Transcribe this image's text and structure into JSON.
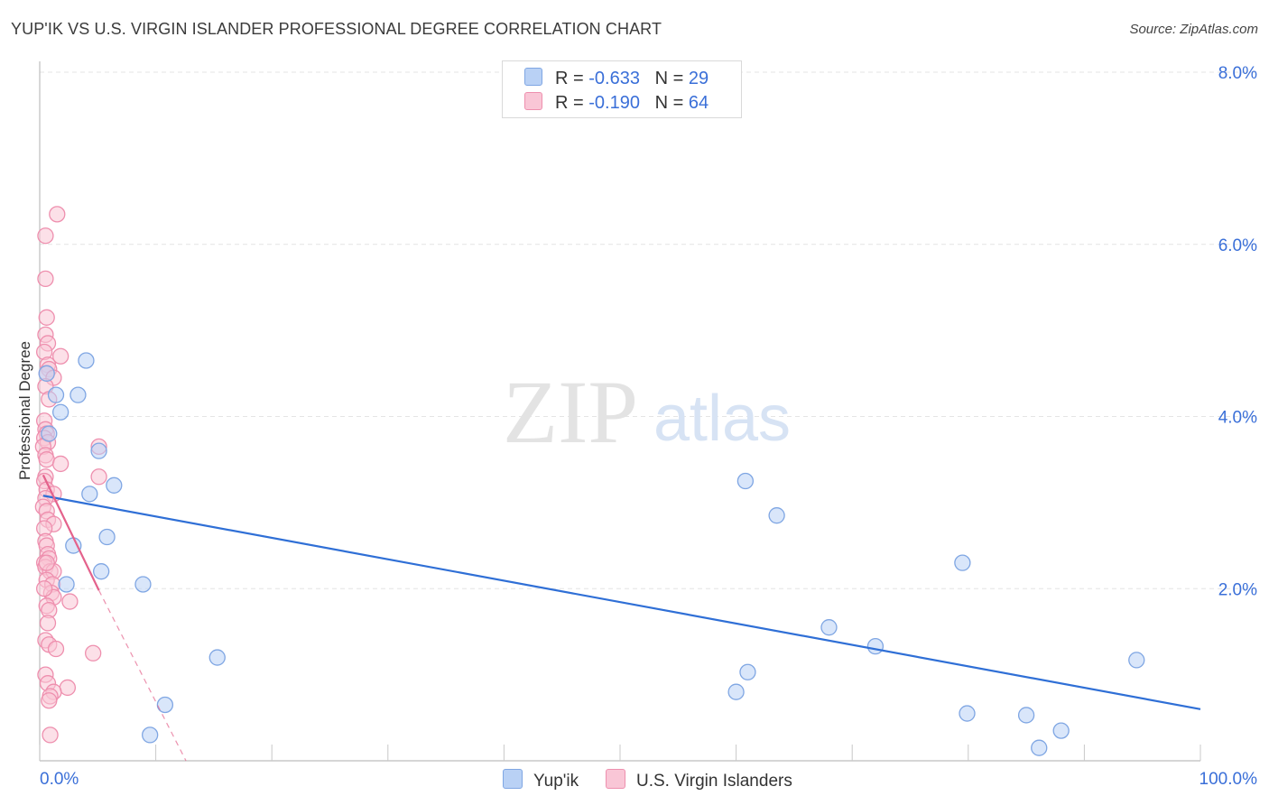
{
  "title": "YUP'IK VS U.S. VIRGIN ISLANDER PROFESSIONAL DEGREE CORRELATION CHART",
  "source": "Source: ZipAtlas.com",
  "watermark": {
    "zip": "ZIP",
    "atlas": "atlas"
  },
  "colors": {
    "blue_fill": "#b9d1f5",
    "blue_stroke": "#7fa6e3",
    "blue_line": "#2f6fd6",
    "pink_fill": "#f9c6d6",
    "pink_stroke": "#ee8fae",
    "pink_line": "#e4628c",
    "tick_label": "#3a6fd8",
    "grid": "#e4e4e4"
  },
  "legend": {
    "rows": [
      {
        "r_label": "R = ",
        "r_value": "-0.633",
        "n_label": "N = ",
        "n_value": "29",
        "series": "Yup'ik"
      },
      {
        "r_label": "R = ",
        "r_value": "-0.190",
        "n_label": "N = ",
        "n_value": "64",
        "series": "U.S. Virgin Islanders"
      }
    ]
  },
  "chart_data": {
    "type": "scatter",
    "title": "YUP'IK VS U.S. VIRGIN ISLANDER PROFESSIONAL DEGREE CORRELATION CHART",
    "xlabel": "",
    "ylabel": "Professional Degree",
    "xlim": [
      0,
      100
    ],
    "ylim": [
      0,
      8.0
    ],
    "x_tick_labels": [
      "0.0%",
      "100.0%"
    ],
    "y_ticks": [
      2.0,
      4.0,
      6.0,
      8.0
    ],
    "y_tick_labels": [
      "2.0%",
      "4.0%",
      "6.0%",
      "8.0%"
    ],
    "grid": true,
    "series": [
      {
        "name": "Yup'ik",
        "color": "#b9d1f5",
        "points": [
          [
            0.6,
            4.5
          ],
          [
            0.8,
            3.8
          ],
          [
            1.4,
            4.25
          ],
          [
            1.8,
            4.05
          ],
          [
            4.0,
            4.65
          ],
          [
            3.3,
            4.25
          ],
          [
            5.1,
            3.6
          ],
          [
            4.3,
            3.1
          ],
          [
            6.4,
            3.2
          ],
          [
            2.9,
            2.5
          ],
          [
            5.8,
            2.6
          ],
          [
            5.3,
            2.2
          ],
          [
            2.3,
            2.05
          ],
          [
            8.9,
            2.05
          ],
          [
            15.3,
            1.2
          ],
          [
            10.8,
            0.65
          ],
          [
            9.5,
            0.3
          ],
          [
            60.8,
            3.25
          ],
          [
            63.5,
            2.85
          ],
          [
            79.5,
            2.3
          ],
          [
            68.0,
            1.55
          ],
          [
            72.0,
            1.33
          ],
          [
            61.0,
            1.03
          ],
          [
            60.0,
            0.8
          ],
          [
            94.5,
            1.17
          ],
          [
            79.9,
            0.55
          ],
          [
            85.0,
            0.53
          ],
          [
            88.0,
            0.35
          ],
          [
            86.1,
            0.15
          ]
        ],
        "trend": {
          "x": [
            0.3,
            100.0
          ],
          "y": [
            3.08,
            0.6
          ]
        }
      },
      {
        "name": "U.S. Virgin Islanders",
        "color": "#f9c6d6",
        "points": [
          [
            1.5,
            6.35
          ],
          [
            0.5,
            6.1
          ],
          [
            0.5,
            5.6
          ],
          [
            0.6,
            5.15
          ],
          [
            0.5,
            4.95
          ],
          [
            0.7,
            4.85
          ],
          [
            0.4,
            4.75
          ],
          [
            1.8,
            4.7
          ],
          [
            0.7,
            4.6
          ],
          [
            0.8,
            4.55
          ],
          [
            0.6,
            4.5
          ],
          [
            1.2,
            4.45
          ],
          [
            0.5,
            4.35
          ],
          [
            0.8,
            4.2
          ],
          [
            0.4,
            3.95
          ],
          [
            0.5,
            3.85
          ],
          [
            0.6,
            3.8
          ],
          [
            0.4,
            3.75
          ],
          [
            0.7,
            3.7
          ],
          [
            0.3,
            3.65
          ],
          [
            0.5,
            3.55
          ],
          [
            5.1,
            3.65
          ],
          [
            0.6,
            3.5
          ],
          [
            1.8,
            3.45
          ],
          [
            5.1,
            3.3
          ],
          [
            0.5,
            3.3
          ],
          [
            0.4,
            3.25
          ],
          [
            0.6,
            3.15
          ],
          [
            1.2,
            3.1
          ],
          [
            0.5,
            3.05
          ],
          [
            0.3,
            2.95
          ],
          [
            0.6,
            2.9
          ],
          [
            0.7,
            2.8
          ],
          [
            1.2,
            2.75
          ],
          [
            0.4,
            2.7
          ],
          [
            0.5,
            2.55
          ],
          [
            0.6,
            2.5
          ],
          [
            0.7,
            2.4
          ],
          [
            0.8,
            2.35
          ],
          [
            0.4,
            2.3
          ],
          [
            0.5,
            2.25
          ],
          [
            0.9,
            2.2
          ],
          [
            1.2,
            2.2
          ],
          [
            0.6,
            2.1
          ],
          [
            1.1,
            2.05
          ],
          [
            1.0,
            1.95
          ],
          [
            1.2,
            1.9
          ],
          [
            2.6,
            1.85
          ],
          [
            0.6,
            1.8
          ],
          [
            0.8,
            1.75
          ],
          [
            0.7,
            1.6
          ],
          [
            0.5,
            1.4
          ],
          [
            0.8,
            1.35
          ],
          [
            1.4,
            1.3
          ],
          [
            4.6,
            1.25
          ],
          [
            0.5,
            1.0
          ],
          [
            0.7,
            0.9
          ],
          [
            2.4,
            0.85
          ],
          [
            1.2,
            0.8
          ],
          [
            0.9,
            0.75
          ],
          [
            0.8,
            0.7
          ],
          [
            0.9,
            0.3
          ],
          [
            0.6,
            2.3
          ],
          [
            0.4,
            2.0
          ]
        ],
        "trend": {
          "x": [
            0.3,
            5.1
          ],
          "y": [
            3.32,
            1.98
          ]
        },
        "trend_extension": {
          "x": [
            5.1,
            12.6
          ],
          "y": [
            1.98,
            0.0
          ]
        }
      }
    ]
  }
}
